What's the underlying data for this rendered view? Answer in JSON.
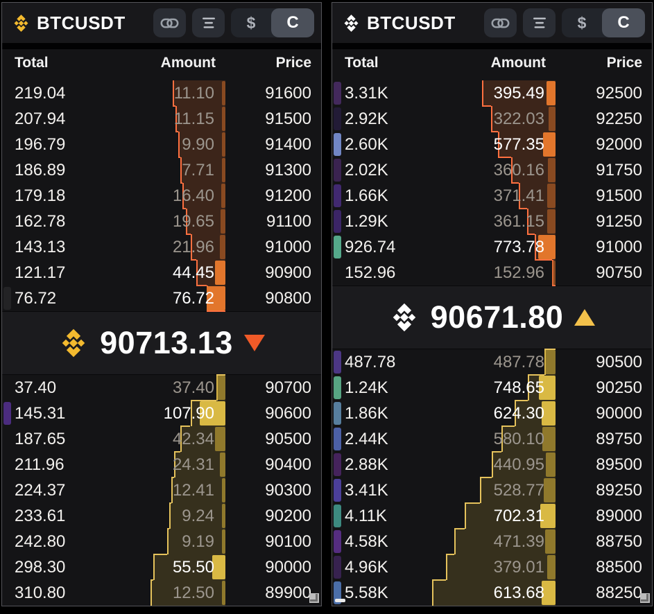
{
  "panels": [
    {
      "header": {
        "symbol": "BTCUSDT",
        "dollar_label": "$",
        "currency_label": "C"
      },
      "columns": {
        "total": "Total",
        "amount": "Amount",
        "price": "Price"
      },
      "logo_color": "#F3BA2F",
      "mid": {
        "price": "90713.13",
        "direction": "down",
        "arrow_color": "#f05a28"
      },
      "colors": {
        "ask_line": "#ff7040",
        "ask_fill": "rgba(205,102,40,0.22)",
        "ask_block": "#e2762c",
        "ask_block_dim": "rgba(200,105,40,0.55)",
        "bid_line": "#e6c35c",
        "bid_fill": "rgba(210,175,60,0.18)",
        "bid_block": "#d9b944",
        "bid_block_dim": "rgba(205,170,55,0.6)"
      },
      "asks": [
        {
          "total": "219.04",
          "amount": "11.10",
          "price": "91600",
          "highlight": false,
          "marker": null
        },
        {
          "total": "207.94",
          "amount": "11.15",
          "price": "91500",
          "highlight": false,
          "marker": null
        },
        {
          "total": "196.79",
          "amount": "9.90",
          "price": "91400",
          "highlight": false,
          "marker": null
        },
        {
          "total": "186.89",
          "amount": "7.71",
          "price": "91300",
          "highlight": false,
          "marker": null
        },
        {
          "total": "179.18",
          "amount": "16.40",
          "price": "91200",
          "highlight": false,
          "marker": null
        },
        {
          "total": "162.78",
          "amount": "19.65",
          "price": "91100",
          "highlight": false,
          "marker": null
        },
        {
          "total": "143.13",
          "amount": "21.96",
          "price": "91000",
          "highlight": false,
          "marker": null
        },
        {
          "total": "121.17",
          "amount": "44.45",
          "price": "90900",
          "highlight": true,
          "marker": null
        },
        {
          "total": "76.72",
          "amount": "76.72",
          "price": "90800",
          "highlight": true,
          "marker": "#232325"
        }
      ],
      "bids": [
        {
          "total": "37.40",
          "amount": "37.40",
          "price": "90700",
          "highlight": false,
          "marker": null
        },
        {
          "total": "145.31",
          "amount": "107.90",
          "price": "90600",
          "highlight": true,
          "marker": "#4b2c7f"
        },
        {
          "total": "187.65",
          "amount": "42.34",
          "price": "90500",
          "highlight": false,
          "marker": null
        },
        {
          "total": "211.96",
          "amount": "24.31",
          "price": "90400",
          "highlight": false,
          "marker": null
        },
        {
          "total": "224.37",
          "amount": "12.41",
          "price": "90300",
          "highlight": false,
          "marker": null
        },
        {
          "total": "233.61",
          "amount": "9.24",
          "price": "90200",
          "highlight": false,
          "marker": null
        },
        {
          "total": "242.80",
          "amount": "9.19",
          "price": "90100",
          "highlight": false,
          "marker": null
        },
        {
          "total": "298.30",
          "amount": "55.50",
          "price": "90000",
          "highlight": true,
          "marker": null
        },
        {
          "total": "310.80",
          "amount": "12.50",
          "price": "89900",
          "highlight": false,
          "marker": null
        }
      ]
    },
    {
      "header": {
        "symbol": "BTCUSDT",
        "dollar_label": "$",
        "currency_label": "C"
      },
      "columns": {
        "total": "Total",
        "amount": "Amount",
        "price": "Price"
      },
      "logo_color": "#ffffff",
      "mid": {
        "price": "90671.80",
        "direction": "up",
        "arrow_color": "#f3c14b"
      },
      "colors": {
        "ask_line": "#ff7040",
        "ask_fill": "rgba(205,102,40,0.22)",
        "ask_block": "#e2762c",
        "ask_block_dim": "rgba(200,105,40,0.55)",
        "bid_line": "#e6c35c",
        "bid_fill": "rgba(210,175,60,0.18)",
        "bid_block": "#d9b944",
        "bid_block_dim": "rgba(205,170,55,0.6)"
      },
      "asks": [
        {
          "total": "3.31K",
          "amount": "395.49",
          "price": "92500",
          "highlight": true,
          "marker": "#43295c"
        },
        {
          "total": "2.92K",
          "amount": "322.03",
          "price": "92250",
          "highlight": false,
          "marker": "#221b36"
        },
        {
          "total": "2.60K",
          "amount": "577.35",
          "price": "92000",
          "highlight": true,
          "marker": "#7186c4"
        },
        {
          "total": "2.02K",
          "amount": "360.16",
          "price": "91750",
          "highlight": false,
          "marker": "#3a2350"
        },
        {
          "total": "1.66K",
          "amount": "371.41",
          "price": "91500",
          "highlight": false,
          "marker": "#412970"
        },
        {
          "total": "1.29K",
          "amount": "361.15",
          "price": "91250",
          "highlight": false,
          "marker": "#3b2566"
        },
        {
          "total": "926.74",
          "amount": "773.78",
          "price": "91000",
          "highlight": true,
          "marker": "#55a88a"
        },
        {
          "total": "152.96",
          "amount": "152.96",
          "price": "90750",
          "highlight": false,
          "marker": null
        }
      ],
      "bids": [
        {
          "total": "487.78",
          "amount": "487.78",
          "price": "90500",
          "highlight": false,
          "marker": "#4c3784"
        },
        {
          "total": "1.24K",
          "amount": "748.65",
          "price": "90250",
          "highlight": true,
          "marker": "#57a482"
        },
        {
          "total": "1.86K",
          "amount": "624.30",
          "price": "90000",
          "highlight": true,
          "marker": "#577e9e"
        },
        {
          "total": "2.44K",
          "amount": "580.10",
          "price": "89750",
          "highlight": false,
          "marker": "#4c60a6"
        },
        {
          "total": "2.88K",
          "amount": "440.95",
          "price": "89500",
          "highlight": false,
          "marker": "#45235c"
        },
        {
          "total": "3.41K",
          "amount": "528.77",
          "price": "89250",
          "highlight": false,
          "marker": "#4b3f99"
        },
        {
          "total": "4.11K",
          "amount": "702.31",
          "price": "89000",
          "highlight": true,
          "marker": "#3d8a80"
        },
        {
          "total": "4.58K",
          "amount": "471.39",
          "price": "88750",
          "highlight": false,
          "marker": "#552d80"
        },
        {
          "total": "4.96K",
          "amount": "379.01",
          "price": "88500",
          "highlight": false,
          "marker": "#37224f"
        },
        {
          "total": "5.58K",
          "amount": "613.68",
          "price": "88250",
          "highlight": true,
          "marker": "#4b6ea8"
        }
      ]
    }
  ]
}
